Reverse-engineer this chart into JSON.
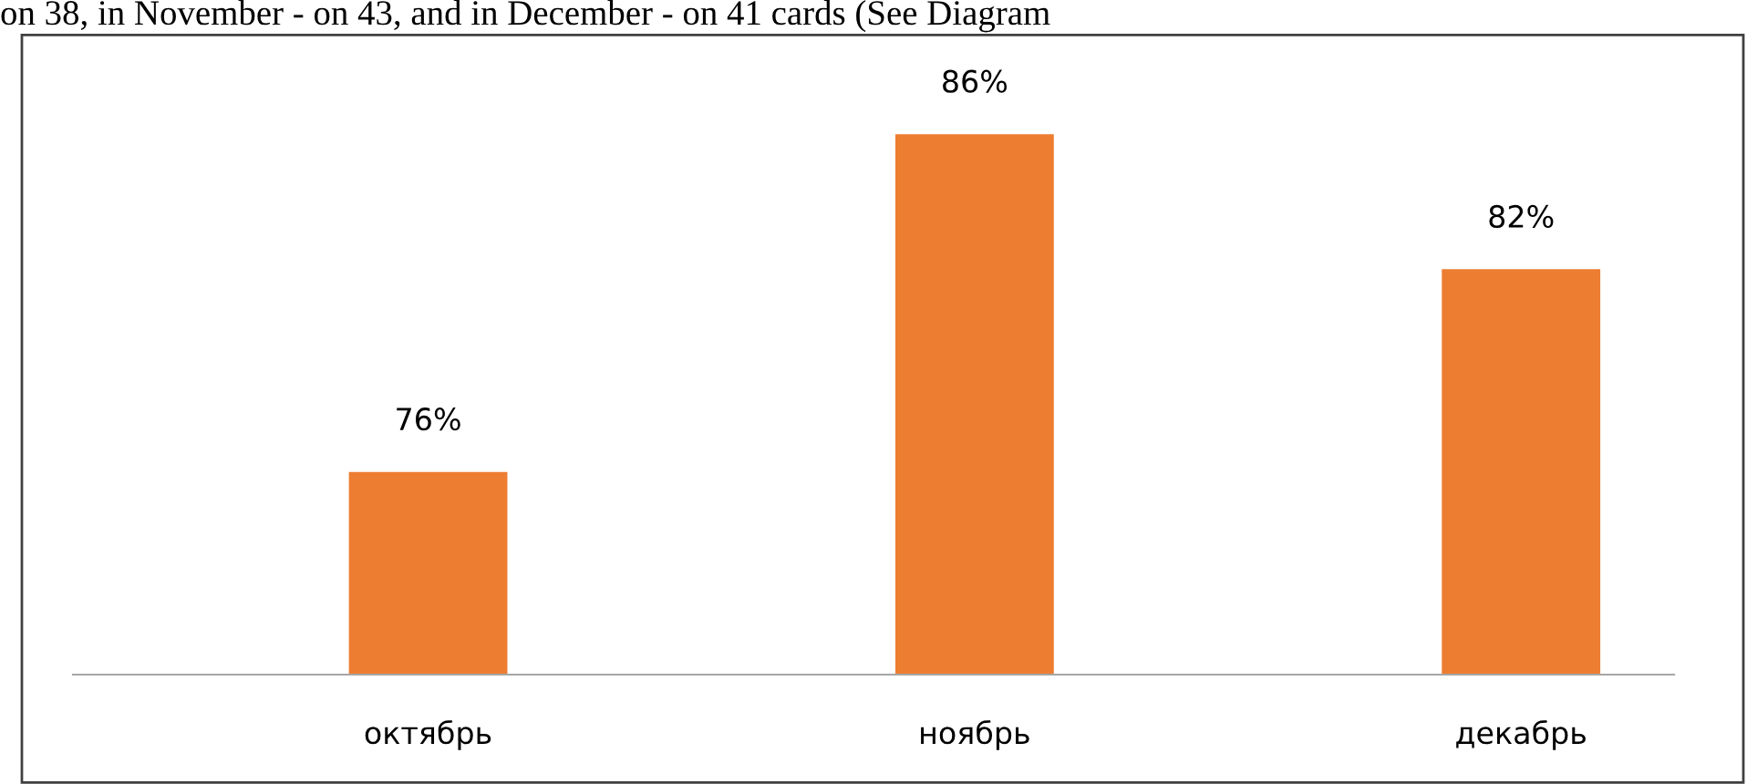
{
  "chart_data": {
    "type": "bar",
    "annotations": [
      "on 38, in November - on 43, and in December - on 41 cards (See Diagram"
    ],
    "categories": [
      "октябрь",
      "ноябрь",
      "декабрь"
    ],
    "values": [
      76,
      86,
      82
    ],
    "value_labels": [
      "76%",
      "86%",
      "82%"
    ],
    "color": "#ed7d31",
    "ylim": [
      70,
      89
    ],
    "tick_labels": "x",
    "grid": false,
    "legend": false
  }
}
